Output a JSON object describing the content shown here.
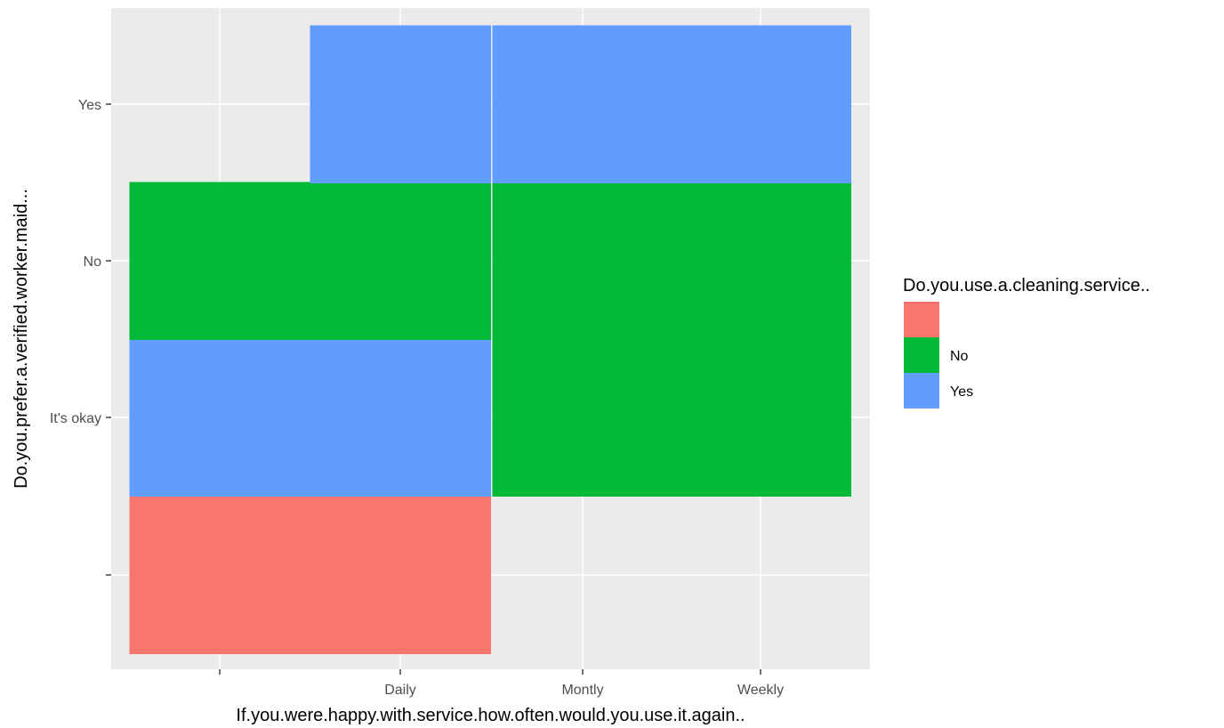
{
  "chart_data": {
    "type": "heatmap",
    "xlabel": "If.you.were.happy.with.service.how.often.would.you.use.it.again..",
    "ylabel": "Do.you.prefer.a.verified.worker.maid...",
    "x_categories": [
      "",
      "Daily",
      "Montly",
      "Weekly"
    ],
    "y_categories": [
      "",
      "It's okay",
      "No",
      "Yes"
    ],
    "grid": true,
    "legend": {
      "title": "Do.you.use.a.cleaning.service..",
      "position": "right",
      "entries": [
        {
          "label": "",
          "color": "#F8766D"
        },
        {
          "label": "No",
          "color": "#00BA38"
        },
        {
          "label": "Yes",
          "color": "#619CFF"
        }
      ]
    },
    "tiles": [
      {
        "x": "",
        "y": "",
        "fill": ""
      },
      {
        "x": "",
        "y": "It's okay",
        "fill": "Yes"
      },
      {
        "x": "",
        "y": "No",
        "fill": "No"
      },
      {
        "x": "Daily",
        "y": "",
        "fill": ""
      },
      {
        "x": "Daily",
        "y": "It's okay",
        "fill": "Yes"
      },
      {
        "x": "Daily",
        "y": "No",
        "fill": "No"
      },
      {
        "x": "Daily",
        "y": "Yes",
        "fill": "Yes"
      },
      {
        "x": "Montly",
        "y": "It's okay",
        "fill": "No"
      },
      {
        "x": "Montly",
        "y": "No",
        "fill": "No"
      },
      {
        "x": "Montly",
        "y": "Yes",
        "fill": "Yes"
      },
      {
        "x": "Weekly",
        "y": "It's okay",
        "fill": "No"
      },
      {
        "x": "Weekly",
        "y": "No",
        "fill": "No"
      },
      {
        "x": "Weekly",
        "y": "Yes",
        "fill": "Yes"
      }
    ],
    "colors": {
      "panel_background": "#EBEBEB",
      "grid_line": "#FFFFFF",
      "tick": "#333333"
    }
  }
}
